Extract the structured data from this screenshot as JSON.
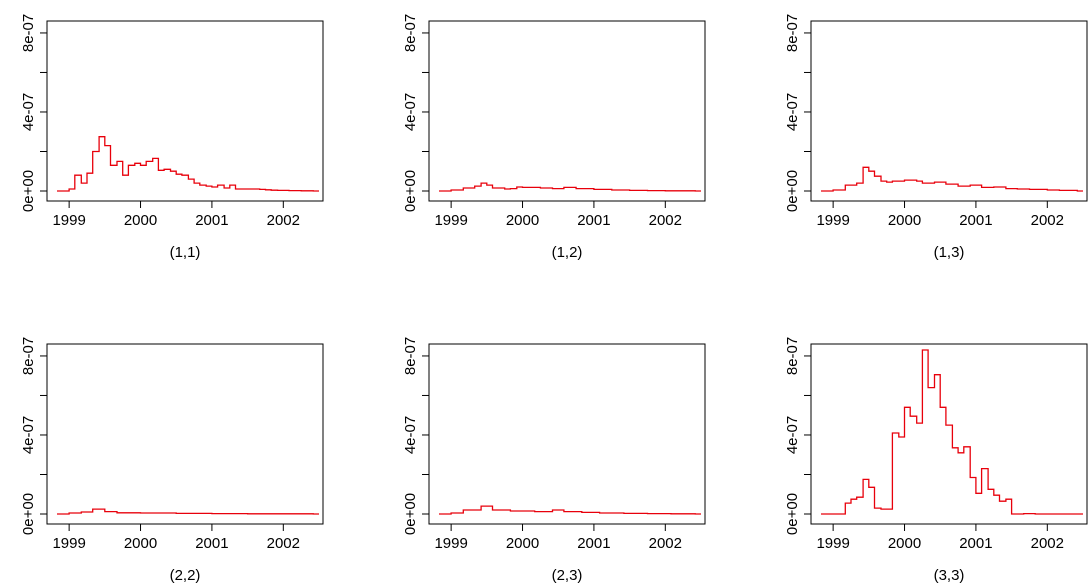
{
  "colors": {
    "series": "#e8000b",
    "axis": "#000000",
    "background": "#ffffff"
  },
  "chart_data": [
    {
      "type": "line",
      "step": true,
      "panel": "(1,1)",
      "xticks": [
        "1999",
        "2000",
        "2001",
        "2002"
      ],
      "yticks": [
        "0e+00",
        "4e-07",
        "8e-07"
      ],
      "xlim": [
        1998.83,
        2002.5
      ],
      "ylim": [
        0,
        8.2e-07
      ],
      "x": [
        1998.83,
        1999.0,
        1999.08,
        1999.17,
        1999.25,
        1999.33,
        1999.42,
        1999.5,
        1999.58,
        1999.67,
        1999.75,
        1999.83,
        1999.92,
        2000.0,
        2000.08,
        2000.17,
        2000.25,
        2000.33,
        2000.42,
        2000.5,
        2000.58,
        2000.67,
        2000.75,
        2000.83,
        2000.92,
        2001.0,
        2001.08,
        2001.17,
        2001.25,
        2001.33,
        2001.42,
        2001.5,
        2001.58,
        2001.67,
        2001.75,
        2001.83,
        2001.92,
        2002.0,
        2002.08,
        2002.17,
        2002.25,
        2002.33,
        2002.42
      ],
      "values": [
        0.0,
        1e-08,
        8e-08,
        4e-08,
        9e-08,
        2e-07,
        2.75e-07,
        2.3e-07,
        1.3e-07,
        1.5e-07,
        8e-08,
        1.3e-07,
        1.4e-07,
        1.3e-07,
        1.5e-07,
        1.65e-07,
        1.05e-07,
        1.1e-07,
        1e-07,
        8.5e-08,
        8e-08,
        6e-08,
        4e-08,
        3e-08,
        2.5e-08,
        2e-08,
        3e-08,
        1.5e-08,
        3e-08,
        1e-08,
        1e-08,
        1e-08,
        1e-08,
        8e-09,
        6e-09,
        4e-09,
        3e-09,
        3e-09,
        2e-09,
        2e-09,
        1e-09,
        1e-09,
        0.0
      ]
    },
    {
      "type": "line",
      "step": true,
      "panel": "(1,2)",
      "xticks": [
        "1999",
        "2000",
        "2001",
        "2002"
      ],
      "yticks": [
        "0e+00",
        "4e-07",
        "8e-07"
      ],
      "xlim": [
        1998.83,
        2002.5
      ],
      "ylim": [
        0,
        8.2e-07
      ],
      "x": [
        1998.83,
        1999.0,
        1999.17,
        1999.33,
        1999.42,
        1999.5,
        1999.58,
        1999.75,
        1999.83,
        1999.92,
        2000.0,
        2000.25,
        2000.42,
        2000.58,
        2000.75,
        2001.0,
        2001.25,
        2001.5,
        2001.75,
        2002.0,
        2002.25,
        2002.42
      ],
      "values": [
        0.0,
        5e-09,
        1.5e-08,
        2.5e-08,
        4e-08,
        3e-08,
        1.5e-08,
        1e-08,
        1.2e-08,
        2e-08,
        1.8e-08,
        1.5e-08,
        1.2e-08,
        1.8e-08,
        1.2e-08,
        8e-09,
        5e-09,
        3e-09,
        2e-09,
        1e-09,
        1e-09,
        0.0
      ]
    },
    {
      "type": "line",
      "step": true,
      "panel": "(1,3)",
      "xticks": [
        "1999",
        "2000",
        "2001",
        "2002"
      ],
      "yticks": [
        "0e+00",
        "4e-07",
        "8e-07"
      ],
      "xlim": [
        1998.83,
        2002.5
      ],
      "ylim": [
        0,
        8.2e-07
      ],
      "x": [
        1998.83,
        1999.0,
        1999.17,
        1999.33,
        1999.42,
        1999.5,
        1999.58,
        1999.67,
        1999.75,
        1999.83,
        2000.0,
        2000.17,
        2000.25,
        2000.42,
        2000.58,
        2000.75,
        2000.92,
        2001.08,
        2001.25,
        2001.42,
        2001.58,
        2001.75,
        2002.0,
        2002.17,
        2002.42
      ],
      "values": [
        0.0,
        5e-09,
        3e-08,
        4e-08,
        1.2e-07,
        1e-07,
        7.5e-08,
        5e-08,
        4.5e-08,
        5e-08,
        5.5e-08,
        5e-08,
        4e-08,
        4.5e-08,
        3.5e-08,
        2.5e-08,
        3e-08,
        1.8e-08,
        2e-08,
        1.2e-08,
        1e-08,
        8e-09,
        5e-09,
        3e-09,
        0.0
      ]
    },
    {
      "type": "line",
      "step": true,
      "panel": "(2,2)",
      "xticks": [
        "1999",
        "2000",
        "2001",
        "2002"
      ],
      "yticks": [
        "0e+00",
        "4e-07",
        "8e-07"
      ],
      "xlim": [
        1998.83,
        2002.5
      ],
      "ylim": [
        0,
        8.2e-07
      ],
      "x": [
        1998.83,
        1999.0,
        1999.17,
        1999.33,
        1999.5,
        1999.67,
        2000.0,
        2000.5,
        2001.0,
        2001.5,
        2002.0,
        2002.42
      ],
      "values": [
        0.0,
        5e-09,
        1e-08,
        2.5e-08,
        1.2e-08,
        6e-09,
        5e-09,
        3e-09,
        2e-09,
        1e-09,
        1e-09,
        0.0
      ]
    },
    {
      "type": "line",
      "step": true,
      "panel": "(2,3)",
      "xticks": [
        "1999",
        "2000",
        "2001",
        "2002"
      ],
      "yticks": [
        "0e+00",
        "4e-07",
        "8e-07"
      ],
      "xlim": [
        1998.83,
        2002.5
      ],
      "ylim": [
        0,
        8.2e-07
      ],
      "x": [
        1998.83,
        1999.0,
        1999.17,
        1999.42,
        1999.58,
        1999.83,
        2000.17,
        2000.42,
        2000.58,
        2000.83,
        2001.08,
        2001.42,
        2001.75,
        2002.08,
        2002.42
      ],
      "values": [
        0.0,
        5e-09,
        2e-08,
        4e-08,
        2e-08,
        1.5e-08,
        1.2e-08,
        2e-08,
        1.2e-08,
        8e-09,
        5e-09,
        3e-09,
        2e-09,
        1e-09,
        0.0
      ]
    },
    {
      "type": "line",
      "step": true,
      "panel": "(3,3)",
      "xticks": [
        "1999",
        "2000",
        "2001",
        "2002"
      ],
      "yticks": [
        "0e+00",
        "4e-07",
        "8e-07"
      ],
      "xlim": [
        1998.83,
        2002.5
      ],
      "ylim": [
        0,
        8.2e-07
      ],
      "x": [
        1998.83,
        1999.08,
        1999.17,
        1999.25,
        1999.33,
        1999.42,
        1999.5,
        1999.58,
        1999.67,
        1999.83,
        1999.92,
        2000.0,
        2000.08,
        2000.17,
        2000.25,
        2000.33,
        2000.42,
        2000.5,
        2000.58,
        2000.67,
        2000.75,
        2000.83,
        2000.92,
        2001.0,
        2001.08,
        2001.17,
        2001.25,
        2001.33,
        2001.42,
        2001.5,
        2001.58,
        2001.67,
        2001.75,
        2001.83,
        2001.92,
        2002.0,
        2002.08,
        2002.42
      ],
      "values": [
        0.0,
        0.0,
        5.5e-08,
        7.5e-08,
        8.5e-08,
        1.75e-07,
        1.35e-07,
        3e-08,
        2.5e-08,
        4.1e-07,
        3.9e-07,
        5.4e-07,
        4.95e-07,
        4.6e-07,
        8.3e-07,
        6.4e-07,
        7.05e-07,
        5.4e-07,
        4.5e-07,
        3.35e-07,
        3.1e-07,
        3.4e-07,
        1.85e-07,
        1.05e-07,
        2.3e-07,
        1.25e-07,
        9.5e-08,
        6.5e-08,
        7.5e-08,
        0.0,
        0.0,
        2e-09,
        2e-09,
        0.0,
        0.0,
        0.0,
        0.0,
        0.0
      ]
    }
  ]
}
